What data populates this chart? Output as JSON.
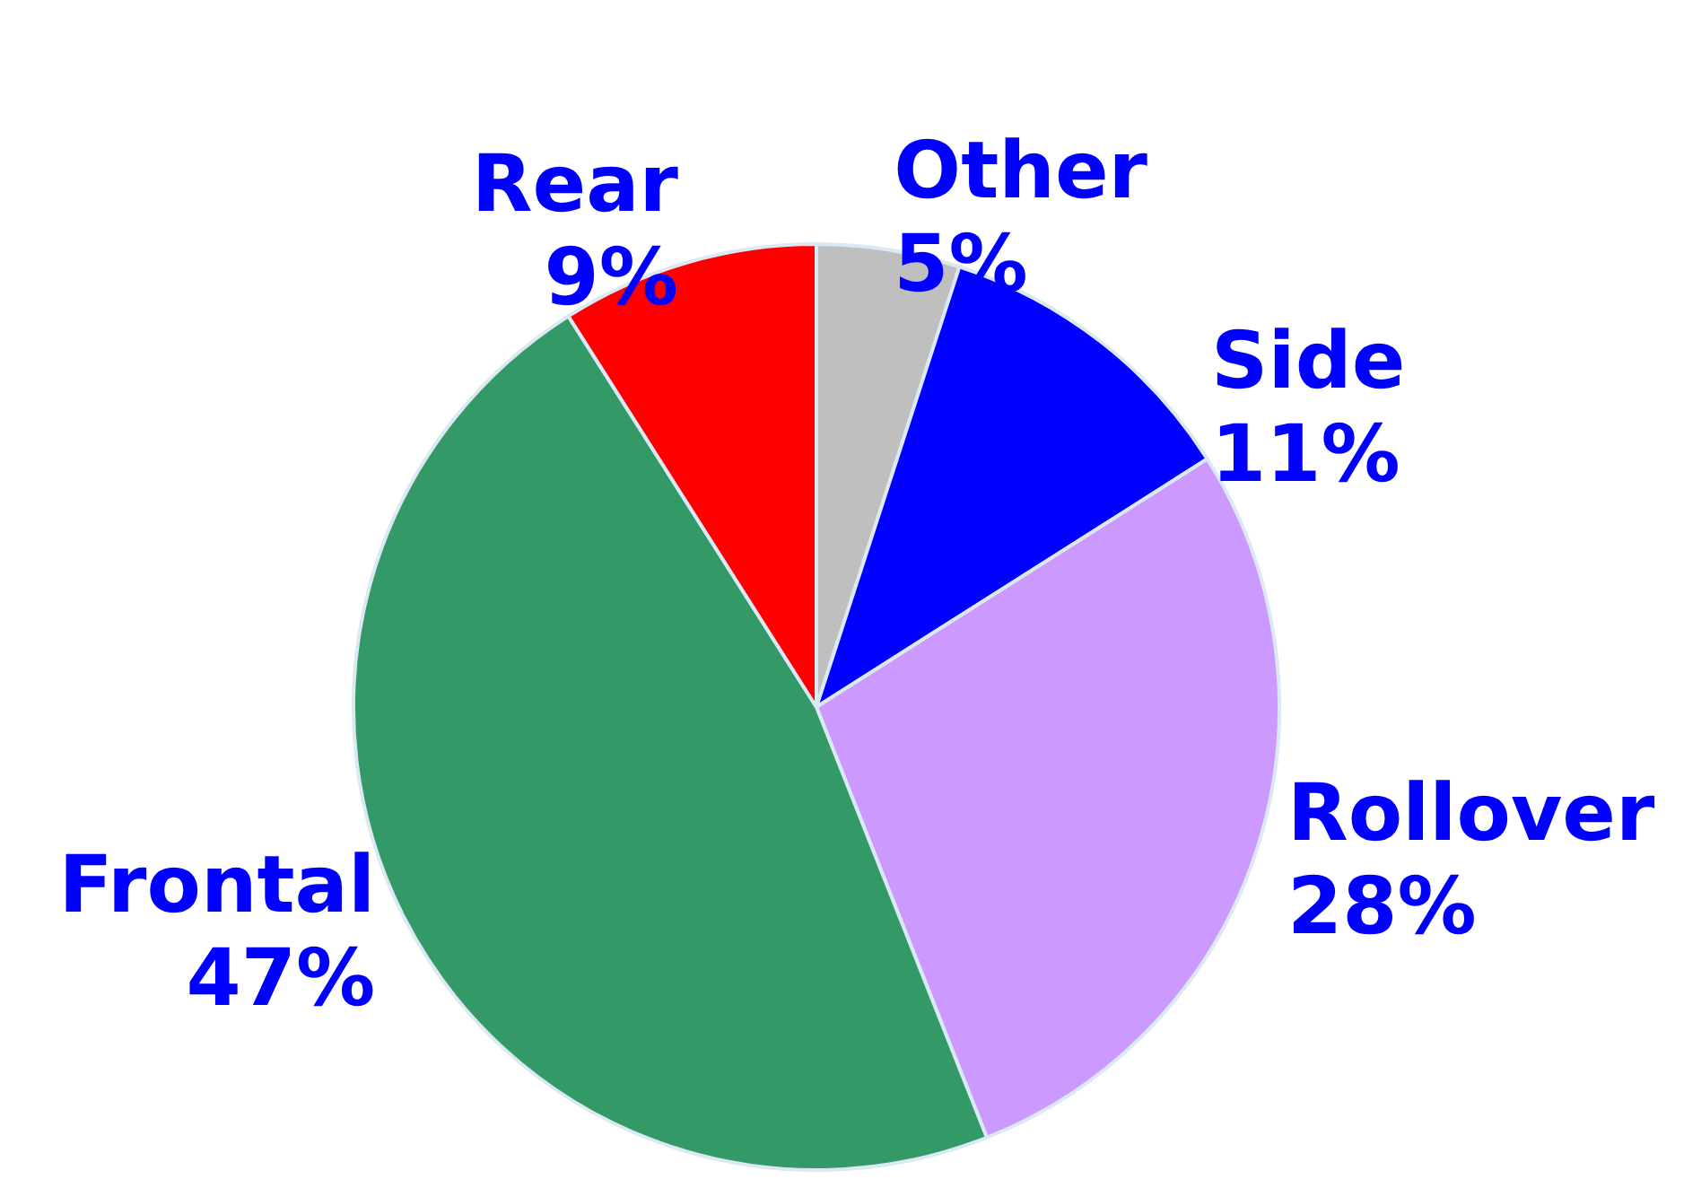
{
  "chart_data": {
    "type": "pie",
    "categories": [
      "Other",
      "Side",
      "Rollover",
      "Frontal",
      "Rear"
    ],
    "values": [
      5,
      11,
      28,
      47,
      9
    ],
    "colors": [
      "#bfbfbf",
      "#0000ff",
      "#cc99ff",
      "#339966",
      "#ff0000"
    ],
    "value_labels": [
      "5%",
      "11%",
      "28%",
      "47%",
      "9%"
    ]
  }
}
